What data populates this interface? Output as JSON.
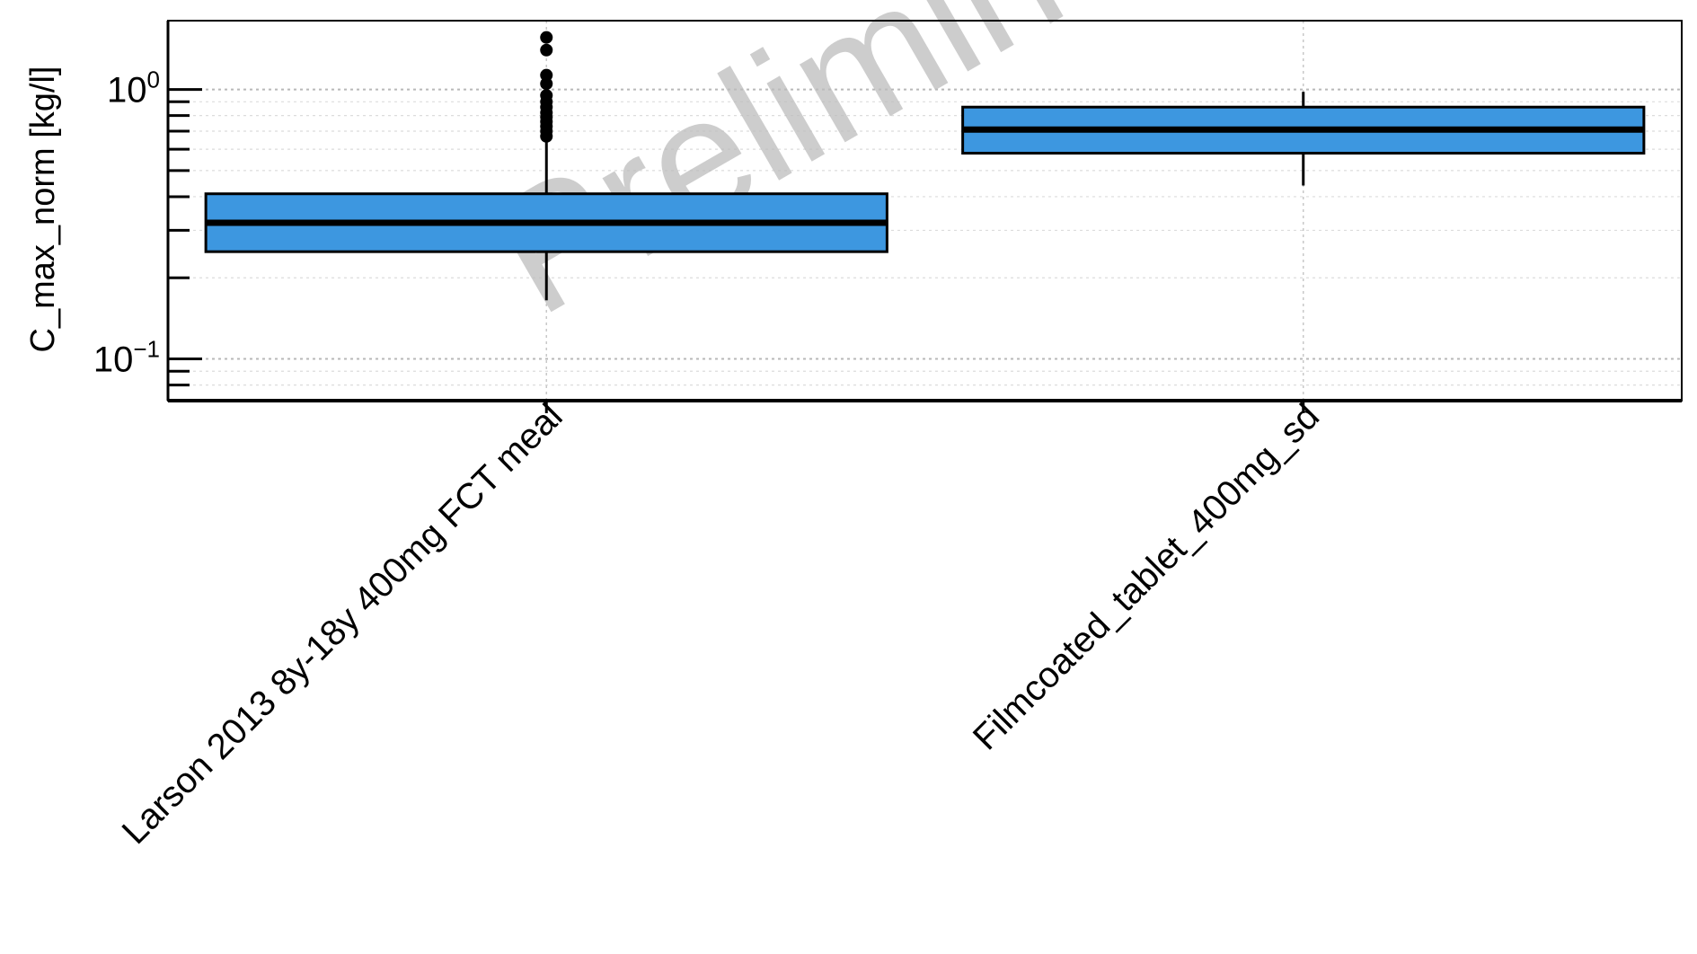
{
  "chart_data": {
    "type": "boxplot",
    "ylabel": "C_max_norm [kg/l]",
    "yscale": "log",
    "ylim": [
      0.07,
      1.8
    ],
    "y_ticks": [
      {
        "value": 1,
        "base": "10",
        "exp": "0"
      },
      {
        "value": 0.1,
        "base": "10",
        "exp": "−1"
      }
    ],
    "grid": true,
    "watermark": "Preliminary analysis",
    "box_color": "#3d97e0",
    "categories": [
      "Larson 2013 8y-18y 400mg FCT meal",
      "Filmcoated_tablet_400mg_sd"
    ],
    "boxes": [
      {
        "category": "Larson 2013 8y-18y 400mg FCT meal",
        "whisker_low": 0.165,
        "q1": 0.25,
        "median": 0.32,
        "q3": 0.41,
        "whisker_high": 0.65,
        "outliers": [
          0.67,
          0.7,
          0.73,
          0.76,
          0.79,
          0.82,
          0.86,
          0.9,
          0.95,
          1.05,
          1.13,
          1.4,
          1.56
        ]
      },
      {
        "category": "Filmcoated_tablet_400mg_sd",
        "whisker_low": 0.44,
        "q1": 0.58,
        "median": 0.71,
        "q3": 0.86,
        "whisker_high": 0.98,
        "outliers": []
      }
    ]
  }
}
